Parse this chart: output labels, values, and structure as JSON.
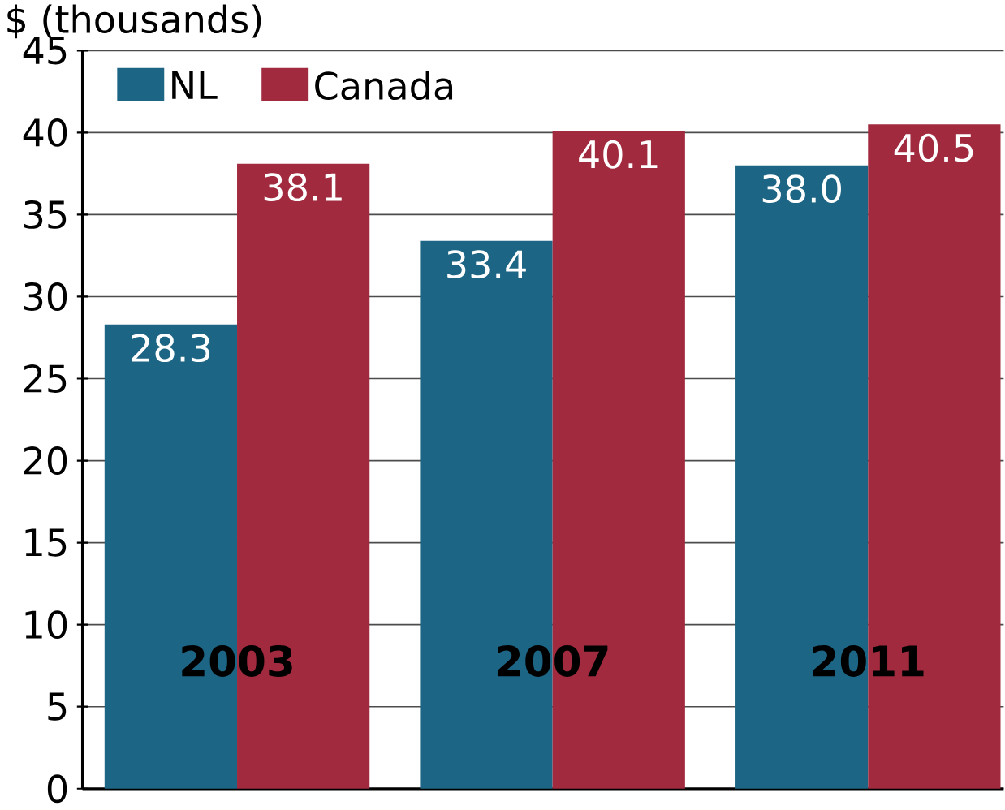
{
  "chart_data": {
    "type": "bar",
    "ylabel": "$ (thousands)",
    "categories": [
      "2003",
      "2007",
      "2011"
    ],
    "series": [
      {
        "name": "NL",
        "color": "#1d6584",
        "values": [
          28.3,
          33.4,
          38.0
        ],
        "value_labels": [
          "28.3",
          "33.4",
          "38.0"
        ]
      },
      {
        "name": "Canada",
        "color": "#a12a3e",
        "values": [
          38.1,
          40.1,
          40.5
        ],
        "value_labels": [
          "38.1",
          "40.1",
          "40.5"
        ]
      }
    ],
    "ylim": [
      0,
      45
    ],
    "yticks": [
      0,
      5,
      10,
      15,
      20,
      25,
      30,
      35,
      40,
      45
    ],
    "grid": "y",
    "legend": "top left"
  }
}
